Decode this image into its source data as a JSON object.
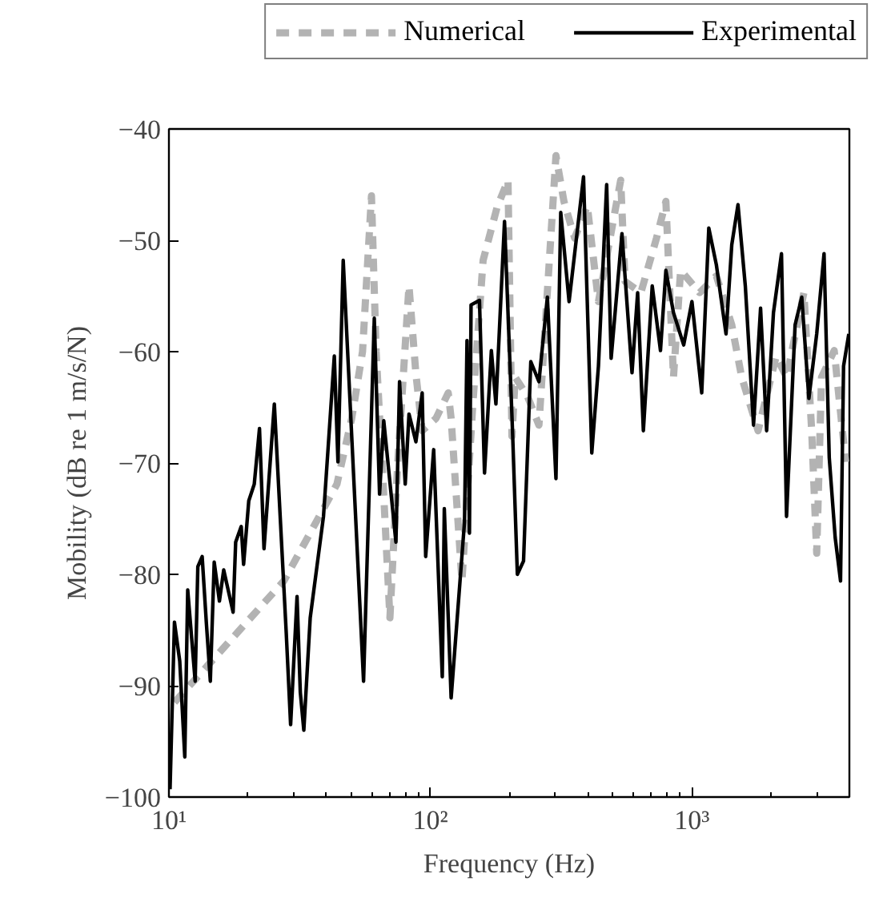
{
  "chart_data": {
    "type": "line",
    "xlabel": "Frequency (Hz)",
    "ylabel": "Mobility (dB re 1 m/s/N)",
    "log": "x",
    "grid": false,
    "legend": "top",
    "xlim": [
      10,
      4000
    ],
    "ylim": [
      -100,
      -40
    ],
    "xticks": [
      {
        "value": 10,
        "label": "10¹"
      },
      {
        "value": 100,
        "label": "10²"
      },
      {
        "value": 1000,
        "label": "10³"
      }
    ],
    "yticks": [
      -100,
      -90,
      -80,
      -70,
      -60,
      -50,
      -40
    ],
    "series": [
      {
        "name": "Numerical",
        "color": "#b3b3b3",
        "line_style": "dashed",
        "x": [
          10.5,
          27.5,
          43.9,
          50,
          55,
          59.5,
          62,
          66,
          70,
          75,
          82.8,
          88,
          93,
          105,
          117,
          120,
          132,
          145,
          159,
          180,
          198,
          205,
          211,
          235,
          260,
          302,
          324,
          356,
          398,
          439,
          534,
          555,
          638,
          732,
          795,
          850,
          905,
          1070,
          1240,
          1420,
          1550,
          1790,
          2100,
          2300,
          2680,
          2870,
          3000,
          3130,
          3500,
          3870
        ],
        "values": [
          -91.5,
          -80.6,
          -71.9,
          -66,
          -60,
          -46,
          -60,
          -72,
          -83.9,
          -70,
          -54.1,
          -62,
          -67.1,
          -66,
          -63.7,
          -66,
          -80.6,
          -65,
          -51.8,
          -47,
          -44.6,
          -67.6,
          -62.3,
          -64,
          -66.6,
          -42.4,
          -46.5,
          -49.8,
          -46.9,
          -55.5,
          -44.6,
          -53.7,
          -54.7,
          -49.8,
          -46.5,
          -62.3,
          -52.7,
          -54.7,
          -53.2,
          -57.6,
          -62.3,
          -67.1,
          -60.4,
          -62.3,
          -54.7,
          -67.1,
          -78.1,
          -62.3,
          -59.9,
          -69.9
        ]
      },
      {
        "name": "Experimental",
        "color": "#000000",
        "line_style": "solid",
        "x": [
          10.1,
          10.5,
          11.0,
          11.5,
          11.8,
          12.6,
          12.9,
          13.4,
          13.9,
          14.4,
          14.9,
          15.6,
          16.2,
          17.6,
          18.0,
          18.9,
          19.3,
          20.2,
          21.2,
          22.2,
          23.1,
          25.3,
          28.1,
          29.2,
          30.9,
          31.8,
          32.8,
          34.7,
          39.0,
          42.9,
          44.3,
          46.4,
          55.5,
          61.0,
          63.9,
          66.3,
          73.8,
          76.2,
          80.1,
          82.8,
          88.0,
          93.0,
          95.9,
          102.9,
          111,
          113,
          120,
          135,
          138,
          141,
          143,
          154,
          161,
          171,
          178,
          192,
          206,
          215,
          227,
          242,
          260,
          280,
          302,
          315,
          339,
          356,
          385,
          414,
          439,
          472,
          491,
          540,
          590,
          620,
          652,
          705,
          758,
          795,
          850,
          930,
          1000,
          1090,
          1160,
          1240,
          1350,
          1420,
          1500,
          1600,
          1720,
          1830,
          1930,
          2050,
          2200,
          2300,
          2480,
          2630,
          2800,
          3000,
          3200,
          3350,
          3530,
          3700,
          3800,
          3980
        ],
        "values": [
          -99.3,
          -84.3,
          -87.8,
          -96.4,
          -81.4,
          -89.6,
          -79.3,
          -78.4,
          -84.3,
          -89.6,
          -78.9,
          -82.4,
          -79.6,
          -83.4,
          -77.1,
          -75.7,
          -79.1,
          -73.4,
          -71.9,
          -66.9,
          -77.7,
          -64.7,
          -85.3,
          -93.5,
          -82.0,
          -90.6,
          -94.0,
          -83.9,
          -74.8,
          -60.4,
          -69.9,
          -51.8,
          -89.6,
          -57.0,
          -72.8,
          -66.2,
          -77.1,
          -62.7,
          -71.9,
          -65.6,
          -68.1,
          -63.7,
          -78.4,
          -68.8,
          -89.2,
          -74.1,
          -91.1,
          -75.3,
          -59.0,
          -76.3,
          -55.8,
          -55.4,
          -70.9,
          -59.9,
          -64.7,
          -48.3,
          -67.1,
          -80.0,
          -78.8,
          -60.9,
          -62.7,
          -55.1,
          -71.4,
          -47.5,
          -55.5,
          -51.2,
          -44.3,
          -69.1,
          -61.3,
          -45.0,
          -60.6,
          -49.4,
          -61.9,
          -54.7,
          -67.1,
          -54.1,
          -59.9,
          -52.7,
          -56.5,
          -59.4,
          -55.5,
          -63.7,
          -48.9,
          -52.2,
          -58.4,
          -50.4,
          -46.8,
          -54.1,
          -66.6,
          -56.1,
          -67.1,
          -56.5,
          -51.2,
          -74.8,
          -57.6,
          -55.1,
          -64.2,
          -58.4,
          -51.2,
          -69.5,
          -76.7,
          -80.6,
          -61.3,
          -58.4
        ]
      }
    ]
  }
}
